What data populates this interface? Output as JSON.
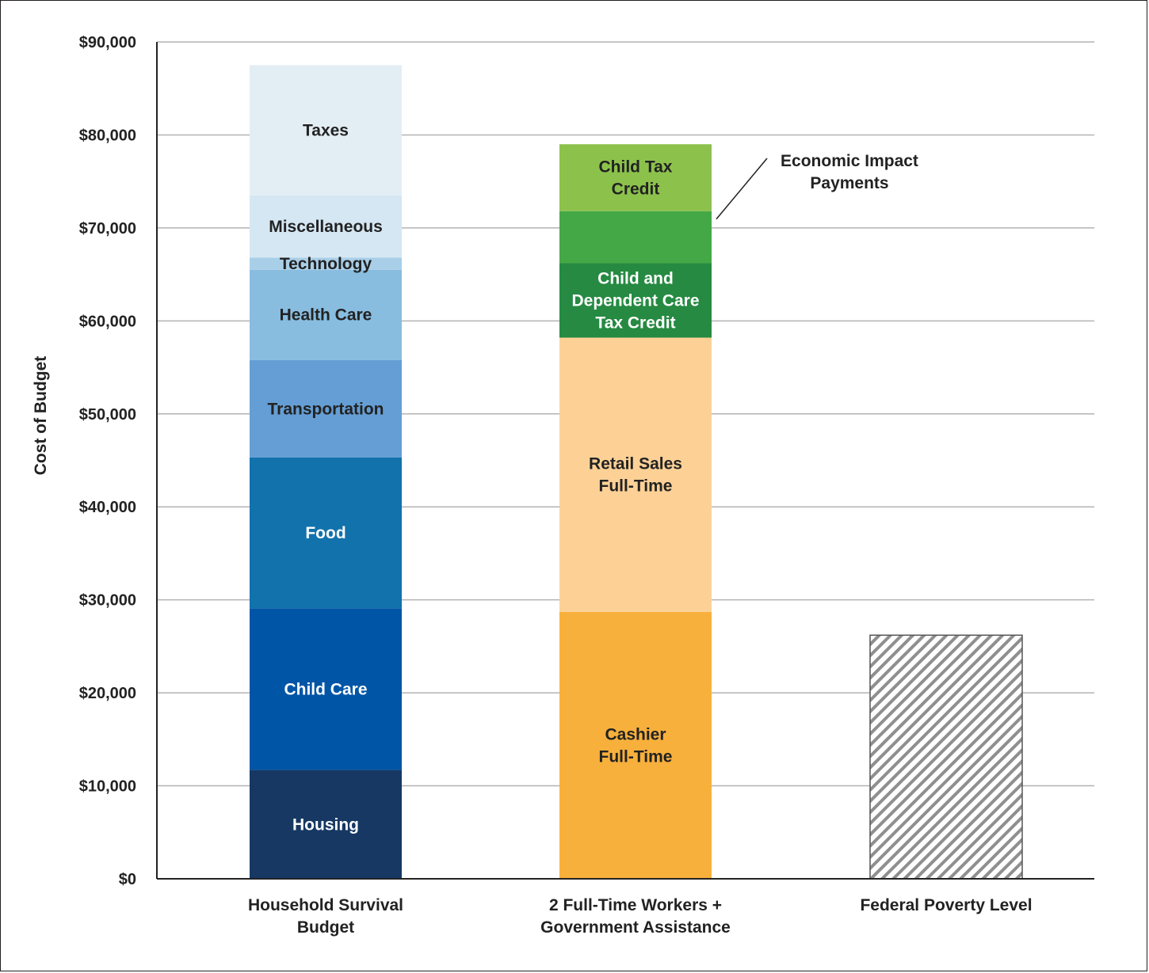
{
  "chart_data": {
    "type": "bar",
    "stacked": true,
    "ylabel": "Cost of Budget",
    "ylim": [
      0,
      90000
    ],
    "yticks": [
      {
        "value": 0,
        "label": "$0"
      },
      {
        "value": 10000,
        "label": "$10,000"
      },
      {
        "value": 20000,
        "label": "$20,000"
      },
      {
        "value": 30000,
        "label": "$30,000"
      },
      {
        "value": 40000,
        "label": "$40,000"
      },
      {
        "value": 50000,
        "label": "$50,000"
      },
      {
        "value": 60000,
        "label": "$60,000"
      },
      {
        "value": 70000,
        "label": "$70,000"
      },
      {
        "value": 80000,
        "label": "$80,000"
      },
      {
        "value": 90000,
        "label": "$90,000"
      }
    ],
    "grid": true,
    "categories": [
      {
        "label_lines": [
          "Household Survival",
          "Budget"
        ]
      },
      {
        "label_lines": [
          "2 Full-Time Workers +",
          "Government Assistance"
        ]
      },
      {
        "label_lines": [
          "Federal Poverty Level"
        ]
      }
    ],
    "bars": [
      {
        "category_index": 0,
        "segments": [
          {
            "name": "Housing",
            "value": 11700,
            "color": "#163863",
            "text_color": "#ffffff",
            "label_lines": [
              "Housing"
            ]
          },
          {
            "name": "Child Care",
            "value": 17400,
            "color": "#0055a6",
            "text_color": "#ffffff",
            "label_lines": [
              "Child Care"
            ]
          },
          {
            "name": "Food",
            "value": 16200,
            "color": "#1272ac",
            "text_color": "#ffffff",
            "label_lines": [
              "Food"
            ]
          },
          {
            "name": "Transportation",
            "value": 10500,
            "color": "#659ed4",
            "text_color": "#222222",
            "label_lines": [
              "Transportation"
            ]
          },
          {
            "name": "Health Care",
            "value": 9700,
            "color": "#88bde0",
            "text_color": "#222222",
            "label_lines": [
              "Health Care"
            ]
          },
          {
            "name": "Technology",
            "value": 1300,
            "color": "#a9cfe8",
            "text_color": "#222222",
            "label_lines": [
              "Technology"
            ]
          },
          {
            "name": "Miscellaneous",
            "value": 6700,
            "color": "#d5e7f3",
            "text_color": "#222222",
            "label_lines": [
              "Miscellaneous"
            ]
          },
          {
            "name": "Taxes",
            "value": 14000,
            "color": "#e3eef4",
            "text_color": "#222222",
            "label_lines": [
              "Taxes"
            ]
          }
        ]
      },
      {
        "category_index": 1,
        "segments": [
          {
            "name": "Cashier Full-Time",
            "value": 28700,
            "color": "#f8b03c",
            "text_color": "#222222",
            "label_lines": [
              "Cashier",
              "Full-Time"
            ]
          },
          {
            "name": "Retail Sales Full-Time",
            "value": 29500,
            "color": "#fdd196",
            "text_color": "#222222",
            "label_lines": [
              "Retail Sales",
              "Full-Time"
            ]
          },
          {
            "name": "Child and Dependent Care Tax Credit",
            "value": 8000,
            "color": "#268a42",
            "text_color": "#ffffff",
            "label_lines": [
              "Child and",
              "Dependent Care",
              "Tax Credit"
            ]
          },
          {
            "name": "Economic Impact Payments",
            "value": 5600,
            "color": "#44a846",
            "text_color": "#222222",
            "label_lines": []
          },
          {
            "name": "Child Tax Credit",
            "value": 7200,
            "color": "#8cc24c",
            "text_color": "#222222",
            "label_lines": [
              "Child Tax",
              "Credit"
            ]
          }
        ]
      },
      {
        "category_index": 2,
        "segments": [
          {
            "name": "Federal Poverty Level",
            "value": 26200,
            "color": "hatch",
            "label_lines": []
          }
        ]
      }
    ],
    "annotations": [
      {
        "label_lines": [
          "Economic Impact",
          "Payments"
        ],
        "points_to": "Economic Impact Payments"
      }
    ]
  }
}
